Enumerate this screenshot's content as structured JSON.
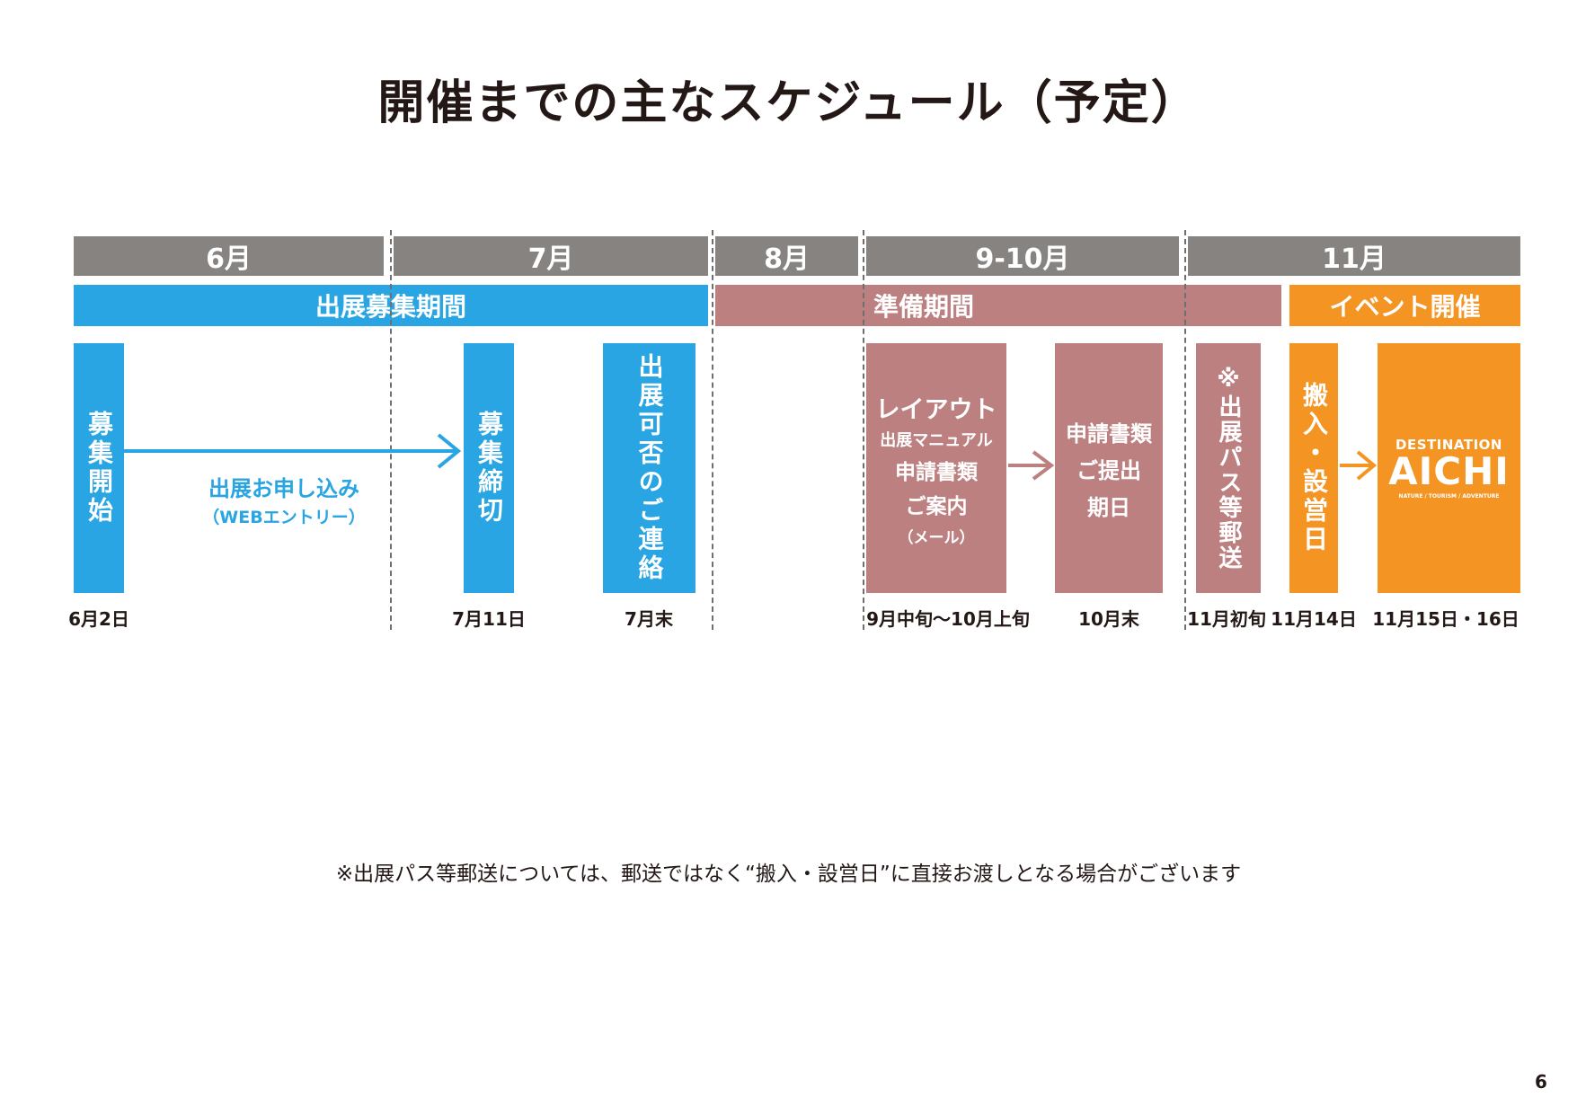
{
  "title": "開催までの主なスケジュール（予定）",
  "months": [
    "6月",
    "7月",
    "8月",
    "9-10月",
    "11月"
  ],
  "phases": {
    "recruitment": "出展募集期間",
    "preparation": "準備期間",
    "event": "イベント開催"
  },
  "steps": {
    "recruit_start": "募集開始",
    "application": {
      "line1": "出展お申し込み",
      "line2": "（WEBエントリー）"
    },
    "recruit_end": "募集締切",
    "result_notice": "出展可否のご連絡",
    "layout": {
      "line1": "レイアウト",
      "line2": "出展マニュアル",
      "line3": "申請書類",
      "line4": "ご案内",
      "line5": "（メール）"
    },
    "submission": {
      "line1": "申請書類",
      "line2": "ご提出",
      "line3": "期日"
    },
    "pass_mail": "※出展パス等郵送",
    "setup_day": "搬入・設営日",
    "event_logo": {
      "top": "DESTINATION",
      "main": "AICHI",
      "sub": "NATURE / TOURISM / ADVENTURE"
    }
  },
  "dates": {
    "recruit_start": "6月2日",
    "recruit_end": "7月11日",
    "result_notice": "7月末",
    "layout": "9月中旬〜10月上旬",
    "submission": "10月末",
    "pass_mail": "11月初旬",
    "setup_day": "11月14日",
    "event": "11月15日・16日"
  },
  "footnote": "※出展パス等郵送については、郵送ではなく“搬入・設営日”に直接お渡しとなる場合がございます",
  "page_number": "6",
  "colors": {
    "month_header": "#868381",
    "recruitment": "#29a5e3",
    "preparation": "#bd8080",
    "event": "#f49423",
    "text": "#231815"
  }
}
